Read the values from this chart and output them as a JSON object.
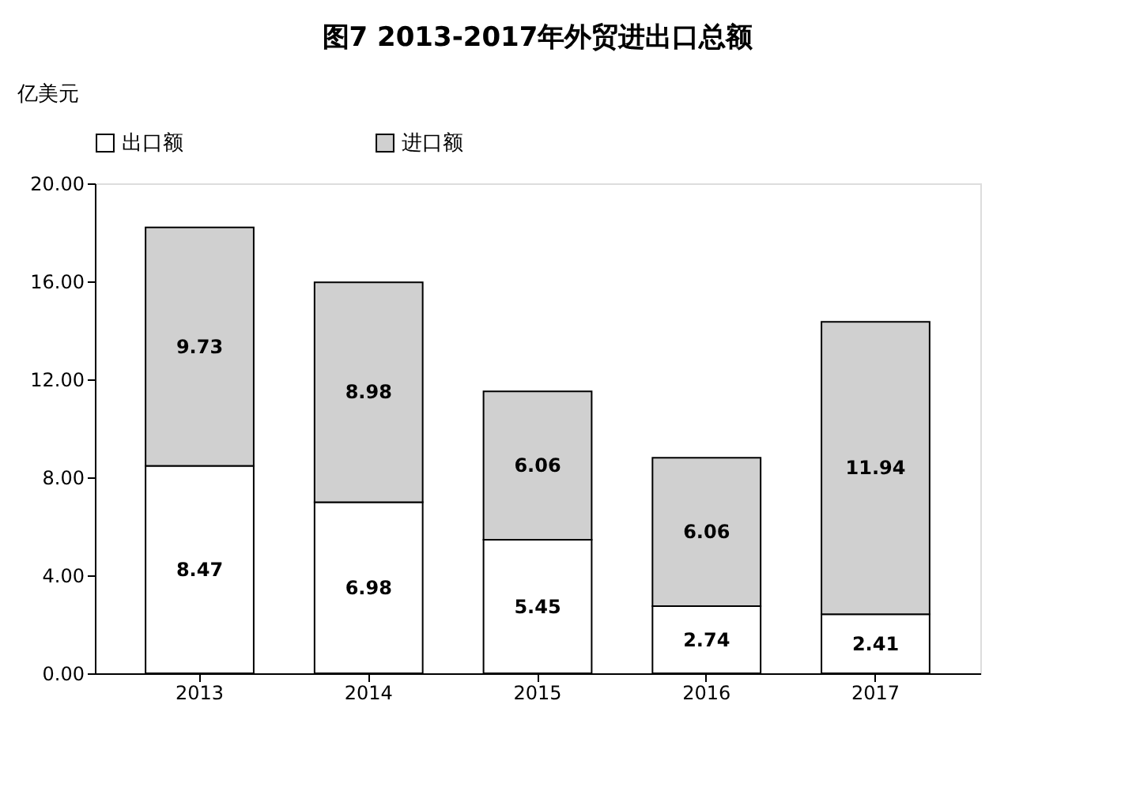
{
  "chart_data": {
    "type": "bar",
    "title": "图7   2013-2017年外贸进出口总额",
    "ylabel": "亿美元",
    "categories": [
      "2013",
      "2014",
      "2015",
      "2016",
      "2017"
    ],
    "stacked": true,
    "data_labels": true,
    "legend": "top",
    "grid": false,
    "series": [
      {
        "name": "出口额",
        "color": "#ffffff",
        "values": [
          8.47,
          6.98,
          5.45,
          2.74,
          2.41
        ]
      },
      {
        "name": "进口额",
        "color": "#d0d0d0",
        "values": [
          9.73,
          8.98,
          6.06,
          6.06,
          11.94
        ]
      }
    ],
    "ylim": [
      0,
      20
    ],
    "yticks": [
      {
        "value": 0,
        "label": "0.00"
      },
      {
        "value": 4,
        "label": "4.00"
      },
      {
        "value": 8,
        "label": "8.00"
      },
      {
        "value": 12,
        "label": "12.00"
      },
      {
        "value": 16,
        "label": "16.00"
      },
      {
        "value": 20,
        "label": "20.00"
      }
    ]
  }
}
